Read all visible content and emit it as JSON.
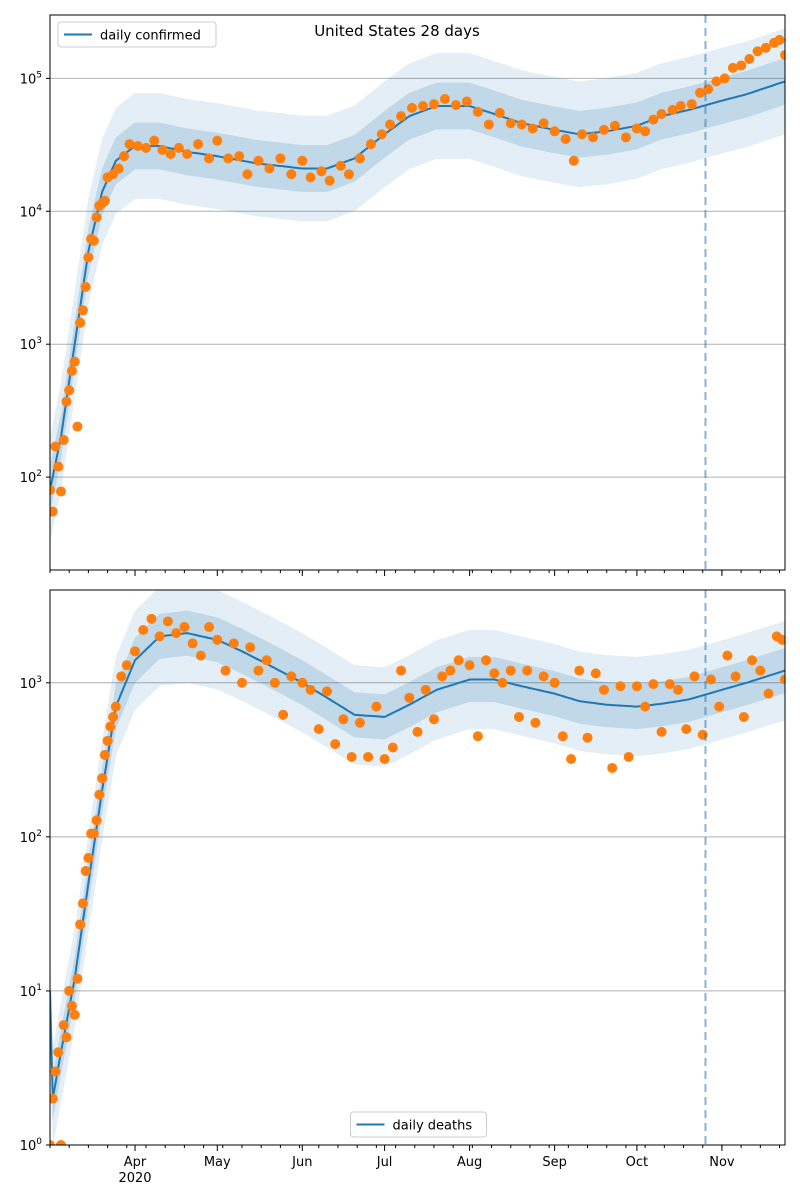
{
  "figure": {
    "title": "United States 28 days",
    "colors": {
      "line": "#1f77b4",
      "points": "#ff7f0e",
      "band": "#1f77b4",
      "grid": "#b0b0b0",
      "vline": "#1f77b4"
    }
  },
  "chart_data": [
    {
      "type": "scatter",
      "scale": "log",
      "legend": {
        "label": "daily confirmed",
        "placement": "top-left"
      },
      "title": "United States 28 days",
      "xlim": [
        "2020-03-01",
        "2020-11-24"
      ],
      "ylim": [
        20,
        300000
      ],
      "vline": "2020-10-26",
      "x_ticks": [
        {
          "date": "2020-04-01",
          "label": "Apr"
        },
        {
          "date": "2020-05-01",
          "label": "May"
        },
        {
          "date": "2020-06-01",
          "label": "Jun"
        },
        {
          "date": "2020-07-01",
          "label": "Jul"
        },
        {
          "date": "2020-08-01",
          "label": "Aug"
        },
        {
          "date": "2020-09-01",
          "label": "Sep"
        },
        {
          "date": "2020-10-01",
          "label": "Oct"
        },
        {
          "date": "2020-11-01",
          "label": "Nov"
        }
      ],
      "x_year_label": "2020",
      "y_ticks": [
        {
          "value": 100,
          "base": "10",
          "exp": "2"
        },
        {
          "value": 1000,
          "base": "10",
          "exp": "3"
        },
        {
          "value": 10000,
          "base": "10",
          "exp": "4"
        },
        {
          "value": 100000,
          "base": "10",
          "exp": "5"
        }
      ],
      "line_anchors": [
        [
          "2020-03-01",
          80
        ],
        [
          "2020-03-05",
          200
        ],
        [
          "2020-03-10",
          1000
        ],
        [
          "2020-03-15",
          5000
        ],
        [
          "2020-03-20",
          14000
        ],
        [
          "2020-03-25",
          24000
        ],
        [
          "2020-04-01",
          31000
        ],
        [
          "2020-04-10",
          31000
        ],
        [
          "2020-04-20",
          28000
        ],
        [
          "2020-05-01",
          26000
        ],
        [
          "2020-05-15",
          23000
        ],
        [
          "2020-06-01",
          21000
        ],
        [
          "2020-06-10",
          21000
        ],
        [
          "2020-06-20",
          25000
        ],
        [
          "2020-07-01",
          38000
        ],
        [
          "2020-07-10",
          52000
        ],
        [
          "2020-07-20",
          62000
        ],
        [
          "2020-08-01",
          62000
        ],
        [
          "2020-08-10",
          54000
        ],
        [
          "2020-08-20",
          46000
        ],
        [
          "2020-09-01",
          41000
        ],
        [
          "2020-09-10",
          38000
        ],
        [
          "2020-09-20",
          40000
        ],
        [
          "2020-10-01",
          44000
        ],
        [
          "2020-10-10",
          52000
        ],
        [
          "2020-10-20",
          58000
        ],
        [
          "2020-11-01",
          68000
        ],
        [
          "2020-11-10",
          76000
        ],
        [
          "2020-11-24",
          95000
        ]
      ],
      "band_inner_factor": 1.5,
      "band_outer_factor": 2.5,
      "points": [
        [
          "2020-03-01",
          80
        ],
        [
          "2020-03-02",
          55
        ],
        [
          "2020-03-03",
          170
        ],
        [
          "2020-03-04",
          120
        ],
        [
          "2020-03-05",
          78
        ],
        [
          "2020-03-06",
          190
        ],
        [
          "2020-03-07",
          370
        ],
        [
          "2020-03-08",
          450
        ],
        [
          "2020-03-09",
          630
        ],
        [
          "2020-03-10",
          740
        ],
        [
          "2020-03-11",
          240
        ],
        [
          "2020-03-12",
          1450
        ],
        [
          "2020-03-13",
          1800
        ],
        [
          "2020-03-14",
          2700
        ],
        [
          "2020-03-15",
          4500
        ],
        [
          "2020-03-16",
          6200
        ],
        [
          "2020-03-17",
          6000
        ],
        [
          "2020-03-18",
          9000
        ],
        [
          "2020-03-19",
          11000
        ],
        [
          "2020-03-20",
          11500
        ],
        [
          "2020-03-21",
          12000
        ],
        [
          "2020-03-22",
          18000
        ],
        [
          "2020-03-24",
          19000
        ],
        [
          "2020-03-26",
          21000
        ],
        [
          "2020-03-28",
          26000
        ],
        [
          "2020-03-30",
          32000
        ],
        [
          "2020-04-02",
          31000
        ],
        [
          "2020-04-05",
          30000
        ],
        [
          "2020-04-08",
          34000
        ],
        [
          "2020-04-11",
          29000
        ],
        [
          "2020-04-14",
          27000
        ],
        [
          "2020-04-17",
          30000
        ],
        [
          "2020-04-20",
          27000
        ],
        [
          "2020-04-24",
          32000
        ],
        [
          "2020-04-28",
          25000
        ],
        [
          "2020-05-01",
          34000
        ],
        [
          "2020-05-05",
          25000
        ],
        [
          "2020-05-09",
          26000
        ],
        [
          "2020-05-12",
          19000
        ],
        [
          "2020-05-16",
          24000
        ],
        [
          "2020-05-20",
          21000
        ],
        [
          "2020-05-24",
          25000
        ],
        [
          "2020-05-28",
          19000
        ],
        [
          "2020-06-01",
          24000
        ],
        [
          "2020-06-04",
          18000
        ],
        [
          "2020-06-08",
          20000
        ],
        [
          "2020-06-11",
          17000
        ],
        [
          "2020-06-15",
          22000
        ],
        [
          "2020-06-18",
          19000
        ],
        [
          "2020-06-22",
          25000
        ],
        [
          "2020-06-26",
          32000
        ],
        [
          "2020-06-30",
          38000
        ],
        [
          "2020-07-03",
          45000
        ],
        [
          "2020-07-07",
          52000
        ],
        [
          "2020-07-11",
          60000
        ],
        [
          "2020-07-15",
          62000
        ],
        [
          "2020-07-19",
          64000
        ],
        [
          "2020-07-23",
          70000
        ],
        [
          "2020-07-27",
          63000
        ],
        [
          "2020-07-31",
          67000
        ],
        [
          "2020-08-04",
          56000
        ],
        [
          "2020-08-08",
          45000
        ],
        [
          "2020-08-12",
          55000
        ],
        [
          "2020-08-16",
          46000
        ],
        [
          "2020-08-20",
          45000
        ],
        [
          "2020-08-24",
          42000
        ],
        [
          "2020-08-28",
          46000
        ],
        [
          "2020-09-01",
          40000
        ],
        [
          "2020-09-05",
          35000
        ],
        [
          "2020-09-08",
          24000
        ],
        [
          "2020-09-11",
          38000
        ],
        [
          "2020-09-15",
          36000
        ],
        [
          "2020-09-19",
          41000
        ],
        [
          "2020-09-23",
          44000
        ],
        [
          "2020-09-27",
          36000
        ],
        [
          "2020-10-01",
          42000
        ],
        [
          "2020-10-04",
          40000
        ],
        [
          "2020-10-07",
          49000
        ],
        [
          "2020-10-10",
          54000
        ],
        [
          "2020-10-14",
          58000
        ],
        [
          "2020-10-17",
          62000
        ],
        [
          "2020-10-21",
          64000
        ],
        [
          "2020-10-24",
          78000
        ],
        [
          "2020-10-27",
          83000
        ],
        [
          "2020-10-30",
          95000
        ],
        [
          "2020-11-02",
          100000
        ],
        [
          "2020-11-05",
          120000
        ],
        [
          "2020-11-08",
          125000
        ],
        [
          "2020-11-11",
          140000
        ],
        [
          "2020-11-14",
          160000
        ],
        [
          "2020-11-17",
          170000
        ],
        [
          "2020-11-20",
          185000
        ],
        [
          "2020-11-22",
          195000
        ],
        [
          "2020-11-24",
          150000
        ]
      ]
    },
    {
      "type": "scatter",
      "scale": "log",
      "legend": {
        "label": "daily deaths",
        "placement": "bottom-center"
      },
      "xlim": [
        "2020-03-01",
        "2020-11-24"
      ],
      "ylim": [
        1,
        4000
      ],
      "vline": "2020-10-26",
      "x_ticks": [
        {
          "date": "2020-04-01",
          "label": "Apr"
        },
        {
          "date": "2020-05-01",
          "label": "May"
        },
        {
          "date": "2020-06-01",
          "label": "Jun"
        },
        {
          "date": "2020-07-01",
          "label": "Jul"
        },
        {
          "date": "2020-08-01",
          "label": "Aug"
        },
        {
          "date": "2020-09-01",
          "label": "Sep"
        },
        {
          "date": "2020-10-01",
          "label": "Oct"
        },
        {
          "date": "2020-11-01",
          "label": "Nov"
        }
      ],
      "x_year_label": "2020",
      "y_ticks": [
        {
          "value": 1,
          "base": "10",
          "exp": "0"
        },
        {
          "value": 10,
          "base": "10",
          "exp": "1"
        },
        {
          "value": 100,
          "base": "10",
          "exp": "2"
        },
        {
          "value": 1000,
          "base": "10",
          "exp": "3"
        }
      ],
      "line_anchors": [
        [
          "2020-03-01",
          10
        ],
        [
          "2020-03-02",
          2
        ],
        [
          "2020-03-05",
          4
        ],
        [
          "2020-03-10",
          12
        ],
        [
          "2020-03-15",
          50
        ],
        [
          "2020-03-20",
          200
        ],
        [
          "2020-03-25",
          700
        ],
        [
          "2020-04-01",
          1400
        ],
        [
          "2020-04-10",
          2000
        ],
        [
          "2020-04-20",
          2100
        ],
        [
          "2020-05-01",
          1900
        ],
        [
          "2020-05-10",
          1600
        ],
        [
          "2020-05-20",
          1300
        ],
        [
          "2020-06-01",
          1000
        ],
        [
          "2020-06-10",
          800
        ],
        [
          "2020-06-20",
          620
        ],
        [
          "2020-07-01",
          600
        ],
        [
          "2020-07-10",
          720
        ],
        [
          "2020-07-20",
          900
        ],
        [
          "2020-08-01",
          1050
        ],
        [
          "2020-08-10",
          1050
        ],
        [
          "2020-08-20",
          950
        ],
        [
          "2020-09-01",
          850
        ],
        [
          "2020-09-10",
          760
        ],
        [
          "2020-09-20",
          720
        ],
        [
          "2020-10-01",
          700
        ],
        [
          "2020-10-10",
          730
        ],
        [
          "2020-10-20",
          780
        ],
        [
          "2020-11-01",
          900
        ],
        [
          "2020-11-10",
          1000
        ],
        [
          "2020-11-24",
          1200
        ]
      ],
      "band_inner_factor": 1.4,
      "band_outer_factor": 2.1,
      "points": [
        [
          "2020-03-01",
          1
        ],
        [
          "2020-03-02",
          2
        ],
        [
          "2020-03-03",
          3
        ],
        [
          "2020-03-04",
          4
        ],
        [
          "2020-03-05",
          1
        ],
        [
          "2020-03-06",
          6
        ],
        [
          "2020-03-07",
          5
        ],
        [
          "2020-03-08",
          10
        ],
        [
          "2020-03-09",
          8
        ],
        [
          "2020-03-10",
          7
        ],
        [
          "2020-03-11",
          12
        ],
        [
          "2020-03-12",
          27
        ],
        [
          "2020-03-13",
          37
        ],
        [
          "2020-03-14",
          60
        ],
        [
          "2020-03-15",
          73
        ],
        [
          "2020-03-16",
          105
        ],
        [
          "2020-03-17",
          105
        ],
        [
          "2020-03-18",
          128
        ],
        [
          "2020-03-19",
          188
        ],
        [
          "2020-03-20",
          240
        ],
        [
          "2020-03-21",
          340
        ],
        [
          "2020-03-22",
          420
        ],
        [
          "2020-03-23",
          520
        ],
        [
          "2020-03-24",
          600
        ],
        [
          "2020-03-25",
          700
        ],
        [
          "2020-03-27",
          1100
        ],
        [
          "2020-03-29",
          1300
        ],
        [
          "2020-04-01",
          1600
        ],
        [
          "2020-04-04",
          2200
        ],
        [
          "2020-04-07",
          2600
        ],
        [
          "2020-04-10",
          2000
        ],
        [
          "2020-04-13",
          2500
        ],
        [
          "2020-04-16",
          2100
        ],
        [
          "2020-04-19",
          2300
        ],
        [
          "2020-04-22",
          1800
        ],
        [
          "2020-04-25",
          1500
        ],
        [
          "2020-04-28",
          2300
        ],
        [
          "2020-05-01",
          1900
        ],
        [
          "2020-05-04",
          1200
        ],
        [
          "2020-05-07",
          1800
        ],
        [
          "2020-05-10",
          1000
        ],
        [
          "2020-05-13",
          1700
        ],
        [
          "2020-05-16",
          1200
        ],
        [
          "2020-05-19",
          1400
        ],
        [
          "2020-05-22",
          1000
        ],
        [
          "2020-05-25",
          620
        ],
        [
          "2020-05-28",
          1100
        ],
        [
          "2020-06-01",
          1000
        ],
        [
          "2020-06-04",
          900
        ],
        [
          "2020-06-07",
          500
        ],
        [
          "2020-06-10",
          880
        ],
        [
          "2020-06-13",
          400
        ],
        [
          "2020-06-16",
          580
        ],
        [
          "2020-06-19",
          330
        ],
        [
          "2020-06-22",
          550
        ],
        [
          "2020-06-25",
          330
        ],
        [
          "2020-06-28",
          700
        ],
        [
          "2020-07-01",
          320
        ],
        [
          "2020-07-04",
          380
        ],
        [
          "2020-07-07",
          1200
        ],
        [
          "2020-07-10",
          800
        ],
        [
          "2020-07-13",
          480
        ],
        [
          "2020-07-16",
          900
        ],
        [
          "2020-07-19",
          580
        ],
        [
          "2020-07-22",
          1100
        ],
        [
          "2020-07-25",
          1200
        ],
        [
          "2020-07-28",
          1400
        ],
        [
          "2020-08-01",
          1300
        ],
        [
          "2020-08-04",
          450
        ],
        [
          "2020-08-07",
          1400
        ],
        [
          "2020-08-10",
          1150
        ],
        [
          "2020-08-13",
          1000
        ],
        [
          "2020-08-16",
          1200
        ],
        [
          "2020-08-19",
          600
        ],
        [
          "2020-08-22",
          1200
        ],
        [
          "2020-08-25",
          550
        ],
        [
          "2020-08-28",
          1100
        ],
        [
          "2020-09-01",
          1000
        ],
        [
          "2020-09-04",
          450
        ],
        [
          "2020-09-07",
          320
        ],
        [
          "2020-09-10",
          1200
        ],
        [
          "2020-09-13",
          440
        ],
        [
          "2020-09-16",
          1150
        ],
        [
          "2020-09-19",
          900
        ],
        [
          "2020-09-22",
          280
        ],
        [
          "2020-09-25",
          950
        ],
        [
          "2020-09-28",
          330
        ],
        [
          "2020-10-01",
          950
        ],
        [
          "2020-10-04",
          700
        ],
        [
          "2020-10-07",
          980
        ],
        [
          "2020-10-10",
          480
        ],
        [
          "2020-10-13",
          980
        ],
        [
          "2020-10-16",
          900
        ],
        [
          "2020-10-19",
          500
        ],
        [
          "2020-10-22",
          1100
        ],
        [
          "2020-10-25",
          460
        ],
        [
          "2020-10-28",
          1050
        ],
        [
          "2020-10-31",
          700
        ],
        [
          "2020-11-03",
          1500
        ],
        [
          "2020-11-06",
          1100
        ],
        [
          "2020-11-09",
          600
        ],
        [
          "2020-11-12",
          1400
        ],
        [
          "2020-11-15",
          1200
        ],
        [
          "2020-11-18",
          850
        ],
        [
          "2020-11-21",
          2000
        ],
        [
          "2020-11-23",
          1900
        ],
        [
          "2020-11-24",
          1050
        ]
      ]
    }
  ]
}
